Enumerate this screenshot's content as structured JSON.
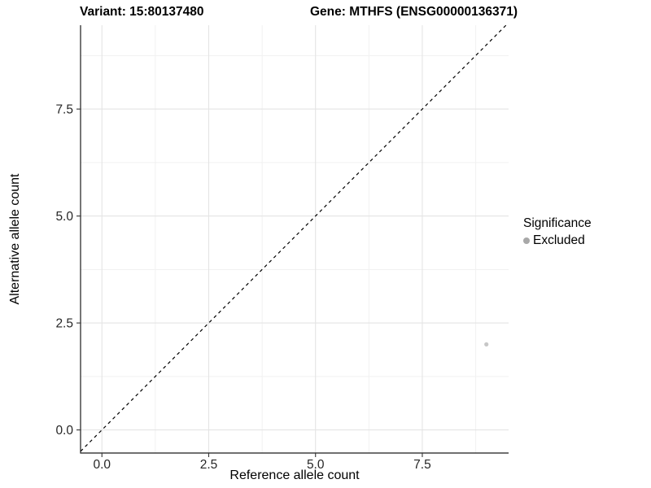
{
  "titles": {
    "left": "Variant: 15:80137480",
    "right": "Gene: MTHFS (ENSG00000136371)"
  },
  "axes": {
    "x_label": "Reference allele count",
    "y_label": "Alternative allele count"
  },
  "legend": {
    "title": "Significance",
    "items": [
      {
        "label": "Excluded",
        "color": "#a8a8a8"
      }
    ]
  },
  "chart_data": {
    "type": "scatter",
    "title_left": "Variant: 15:80137480",
    "title_right": "Gene: MTHFS (ENSG00000136371)",
    "xlabel": "Reference allele count",
    "ylabel": "Alternative allele count",
    "xlim": [
      -0.5,
      9.52
    ],
    "ylim": [
      -0.54,
      9.46
    ],
    "xticks": {
      "values": [
        0,
        2.5,
        5,
        7.5
      ],
      "labels": [
        "0.0",
        "2.5",
        "5.0",
        "7.5"
      ]
    },
    "yticks": {
      "values": [
        0,
        2.5,
        5,
        7.5
      ],
      "labels": [
        "0.0",
        "2.5",
        "5.0",
        "7.5"
      ]
    },
    "minor_ticks": [
      1.25,
      3.75,
      6.25,
      8.75
    ],
    "grid": true,
    "legend_position": "right",
    "reference_line": {
      "type": "identity",
      "equation": "y = x",
      "style": "dashed",
      "color": "#000000"
    },
    "series": [
      {
        "name": "Excluded",
        "color": "#c7c7c7",
        "point_radius": 2.6,
        "points": [
          [
            9,
            2
          ]
        ]
      }
    ],
    "colors": {
      "grid_major": "#e4e4e4",
      "grid_minor": "#f1f1f1",
      "axis_line": "#1a1a1a",
      "tick_mark": "#333333",
      "tick_label": "#262626"
    }
  }
}
